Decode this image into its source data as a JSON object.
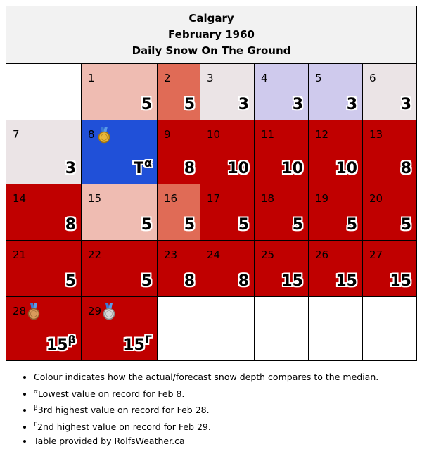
{
  "header": {
    "location": "Calgary",
    "month": "February 1960",
    "metric": "Daily Snow On The Ground"
  },
  "colors": {
    "dark_red": "#c00000",
    "medium_red": "#e06b56",
    "light_red": "#efbcb2",
    "light_grey": "#ebe4e6",
    "lavender": "#cfcaed",
    "blue": "#2050d8",
    "empty": "#ffffff"
  },
  "weeks": [
    [
      {
        "empty": true
      },
      {
        "day": "1",
        "value": "5",
        "sup": "",
        "color": "light_red",
        "medal": ""
      },
      {
        "day": "2",
        "value": "5",
        "sup": "",
        "color": "medium_red",
        "medal": ""
      },
      {
        "day": "3",
        "value": "3",
        "sup": "",
        "color": "light_grey",
        "medal": ""
      },
      {
        "day": "4",
        "value": "3",
        "sup": "",
        "color": "lavender",
        "medal": ""
      },
      {
        "day": "5",
        "value": "3",
        "sup": "",
        "color": "lavender",
        "medal": ""
      },
      {
        "day": "6",
        "value": "3",
        "sup": "",
        "color": "light_grey",
        "medal": ""
      }
    ],
    [
      {
        "day": "7",
        "value": "3",
        "sup": "",
        "color": "light_grey",
        "medal": ""
      },
      {
        "day": "8",
        "value": "T",
        "sup": "α",
        "color": "blue",
        "medal": "gold-medal-icon"
      },
      {
        "day": "9",
        "value": "8",
        "sup": "",
        "color": "dark_red",
        "medal": ""
      },
      {
        "day": "10",
        "value": "10",
        "sup": "",
        "color": "dark_red",
        "medal": ""
      },
      {
        "day": "11",
        "value": "10",
        "sup": "",
        "color": "dark_red",
        "medal": ""
      },
      {
        "day": "12",
        "value": "10",
        "sup": "",
        "color": "dark_red",
        "medal": ""
      },
      {
        "day": "13",
        "value": "8",
        "sup": "",
        "color": "dark_red",
        "medal": ""
      }
    ],
    [
      {
        "day": "14",
        "value": "8",
        "sup": "",
        "color": "dark_red",
        "medal": ""
      },
      {
        "day": "15",
        "value": "5",
        "sup": "",
        "color": "light_red",
        "medal": ""
      },
      {
        "day": "16",
        "value": "5",
        "sup": "",
        "color": "medium_red",
        "medal": ""
      },
      {
        "day": "17",
        "value": "5",
        "sup": "",
        "color": "dark_red",
        "medal": ""
      },
      {
        "day": "18",
        "value": "5",
        "sup": "",
        "color": "dark_red",
        "medal": ""
      },
      {
        "day": "19",
        "value": "5",
        "sup": "",
        "color": "dark_red",
        "medal": ""
      },
      {
        "day": "20",
        "value": "5",
        "sup": "",
        "color": "dark_red",
        "medal": ""
      }
    ],
    [
      {
        "day": "21",
        "value": "5",
        "sup": "",
        "color": "dark_red",
        "medal": ""
      },
      {
        "day": "22",
        "value": "5",
        "sup": "",
        "color": "dark_red",
        "medal": ""
      },
      {
        "day": "23",
        "value": "8",
        "sup": "",
        "color": "dark_red",
        "medal": ""
      },
      {
        "day": "24",
        "value": "8",
        "sup": "",
        "color": "dark_red",
        "medal": ""
      },
      {
        "day": "25",
        "value": "15",
        "sup": "",
        "color": "dark_red",
        "medal": ""
      },
      {
        "day": "26",
        "value": "15",
        "sup": "",
        "color": "dark_red",
        "medal": ""
      },
      {
        "day": "27",
        "value": "15",
        "sup": "",
        "color": "dark_red",
        "medal": ""
      }
    ],
    [
      {
        "day": "28",
        "value": "15",
        "sup": "β",
        "color": "dark_red",
        "medal": "bronze-medal-icon"
      },
      {
        "day": "29",
        "value": "15",
        "sup": "Γ",
        "color": "dark_red",
        "medal": "silver-medal-icon"
      },
      {
        "empty": true
      },
      {
        "empty": true
      },
      {
        "empty": true
      },
      {
        "empty": true
      },
      {
        "empty": true
      }
    ]
  ],
  "notes": [
    {
      "sup": "",
      "text": "Colour indicates how the actual/forecast snow depth compares to the median."
    },
    {
      "sup": "α",
      "text": "Lowest value on record for Feb 8."
    },
    {
      "sup": "β",
      "text": "3rd highest value on record for Feb 28."
    },
    {
      "sup": "Γ",
      "text": "2nd highest value on record for Feb 29."
    },
    {
      "sup": "",
      "text": "Table provided by RolfsWeather.ca"
    }
  ]
}
